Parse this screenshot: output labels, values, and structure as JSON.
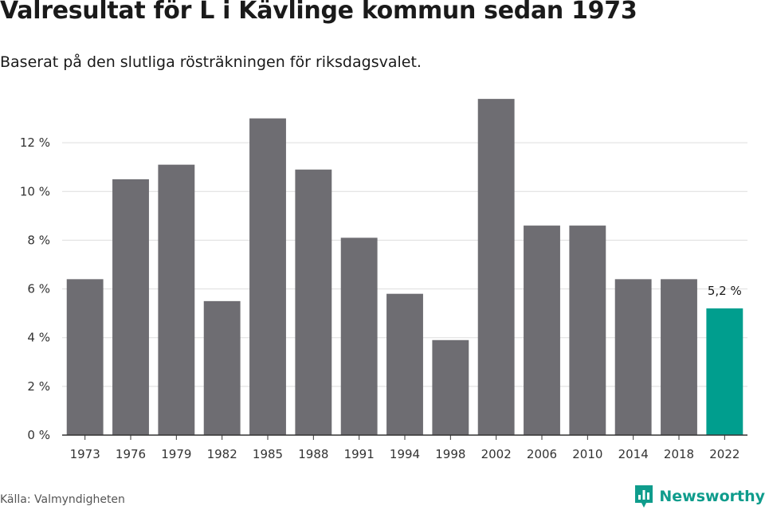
{
  "header": {
    "title": "Valresultat för L i Kävlinge kommun sedan 1973",
    "subtitle": "Baserat på den slutliga rösträkningen för riksdagsvalet."
  },
  "footer": {
    "source": "Källa: Valmyndigheten",
    "brand": "Newsworthy",
    "brand_icon": "newsworthy-logo-icon"
  },
  "colors": {
    "bar": "#6e6d72",
    "highlight": "#009e8e",
    "grid": "#dddddd",
    "axis": "#333333",
    "brand": "#0f9c8c"
  },
  "chart_data": {
    "type": "bar",
    "categories": [
      "1973",
      "1976",
      "1979",
      "1982",
      "1985",
      "1988",
      "1991",
      "1994",
      "1998",
      "2002",
      "2006",
      "2010",
      "2014",
      "2018",
      "2022"
    ],
    "values": [
      6.4,
      10.5,
      11.1,
      5.5,
      13.0,
      10.9,
      8.1,
      5.8,
      3.9,
      13.8,
      8.6,
      8.6,
      6.4,
      6.4,
      5.2
    ],
    "highlight_index": 14,
    "data_labels": [
      {
        "index": 14,
        "text": "5,2 %"
      }
    ],
    "yticks": [
      0,
      2,
      4,
      6,
      8,
      10,
      12
    ],
    "ytick_labels": [
      "0 %",
      "2 %",
      "4 %",
      "6 %",
      "8 %",
      "10 %",
      "12 %"
    ],
    "ylim": [
      0,
      14
    ],
    "xlabel": "",
    "ylabel": "",
    "grid": true,
    "legend": "none"
  }
}
